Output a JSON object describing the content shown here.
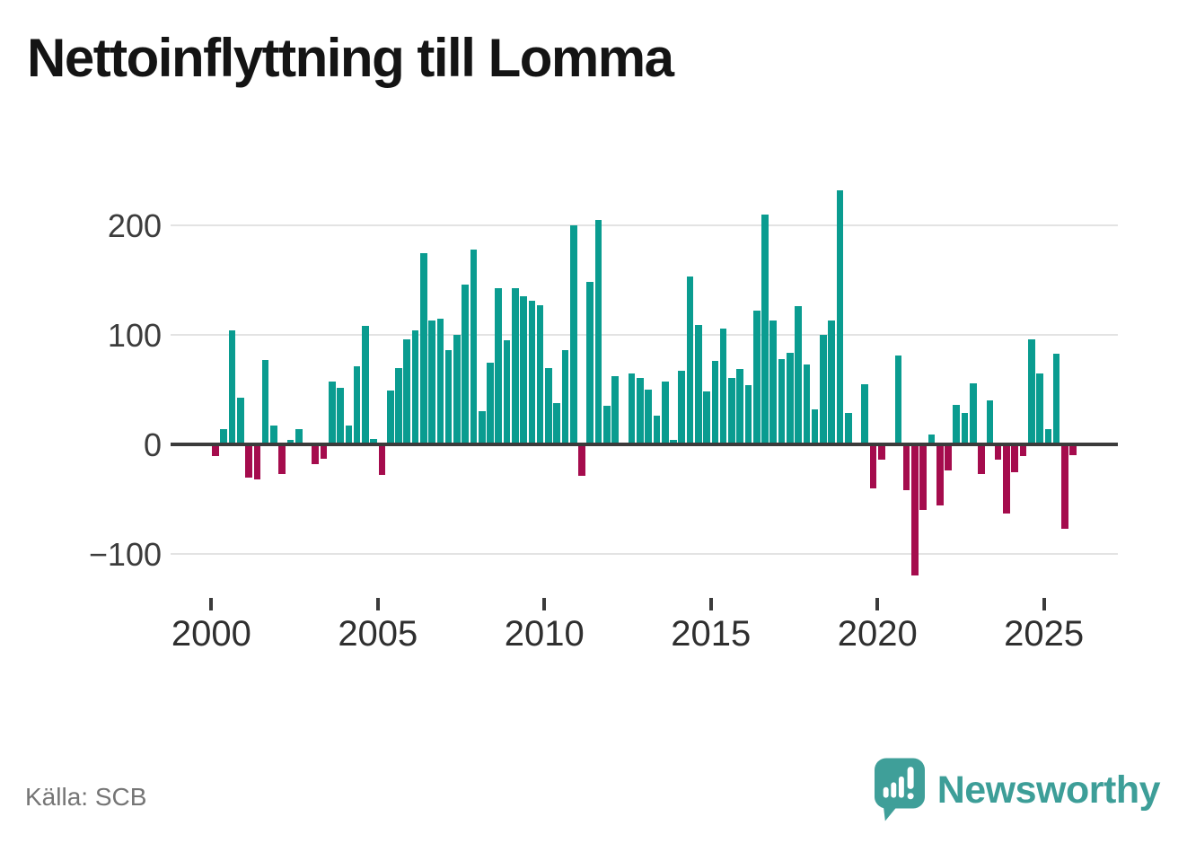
{
  "title": "Nettoinflyttning till Lomma",
  "source": "Källa: SCB",
  "brand": {
    "name": "Newsworthy"
  },
  "colors": {
    "positive_bar": "#0a9c90",
    "negative_bar": "#a50c4d",
    "gridline": "#e3e3e3",
    "zero_line": "#3b3b3b",
    "axis_text": "#3c3c3c",
    "title_text": "#141414",
    "source_text": "#757575",
    "logo_teal": "#3f9f99"
  },
  "chart_data": {
    "type": "bar",
    "frequency": "quarterly",
    "start_year": 2000,
    "title": "Nettoinflyttning till Lomma",
    "xlabel": "",
    "ylabel": "",
    "x_ticks": [
      2000,
      2005,
      2010,
      2015,
      2020,
      2025
    ],
    "y_ticks": [
      200,
      100,
      0,
      -100
    ],
    "ylim": [
      -130,
      240
    ],
    "grid": "horizontal",
    "legend": "none",
    "series": [
      {
        "name": "Nettoinflyttning",
        "values": [
          -11,
          14,
          104,
          43,
          -30,
          -32,
          77,
          17,
          -27,
          4,
          14,
          2,
          -18,
          -13,
          57,
          52,
          17,
          71,
          108,
          5,
          -28,
          49,
          70,
          96,
          104,
          175,
          113,
          115,
          86,
          100,
          146,
          178,
          30,
          75,
          143,
          95,
          143,
          135,
          131,
          127,
          70,
          38,
          86,
          200,
          -29,
          148,
          205,
          35,
          62,
          1,
          65,
          61,
          50,
          26,
          57,
          4,
          67,
          153,
          109,
          48,
          76,
          106,
          61,
          69,
          54,
          122,
          210,
          113,
          78,
          84,
          126,
          73,
          32,
          100,
          113,
          232,
          29,
          2,
          55,
          -40,
          -14,
          1,
          81,
          -42,
          -120,
          -60,
          9,
          -56,
          -24,
          36,
          29,
          56,
          -27,
          40,
          -14,
          -63,
          -25,
          -11,
          96,
          65,
          14,
          83,
          -77,
          -10
        ]
      }
    ]
  }
}
